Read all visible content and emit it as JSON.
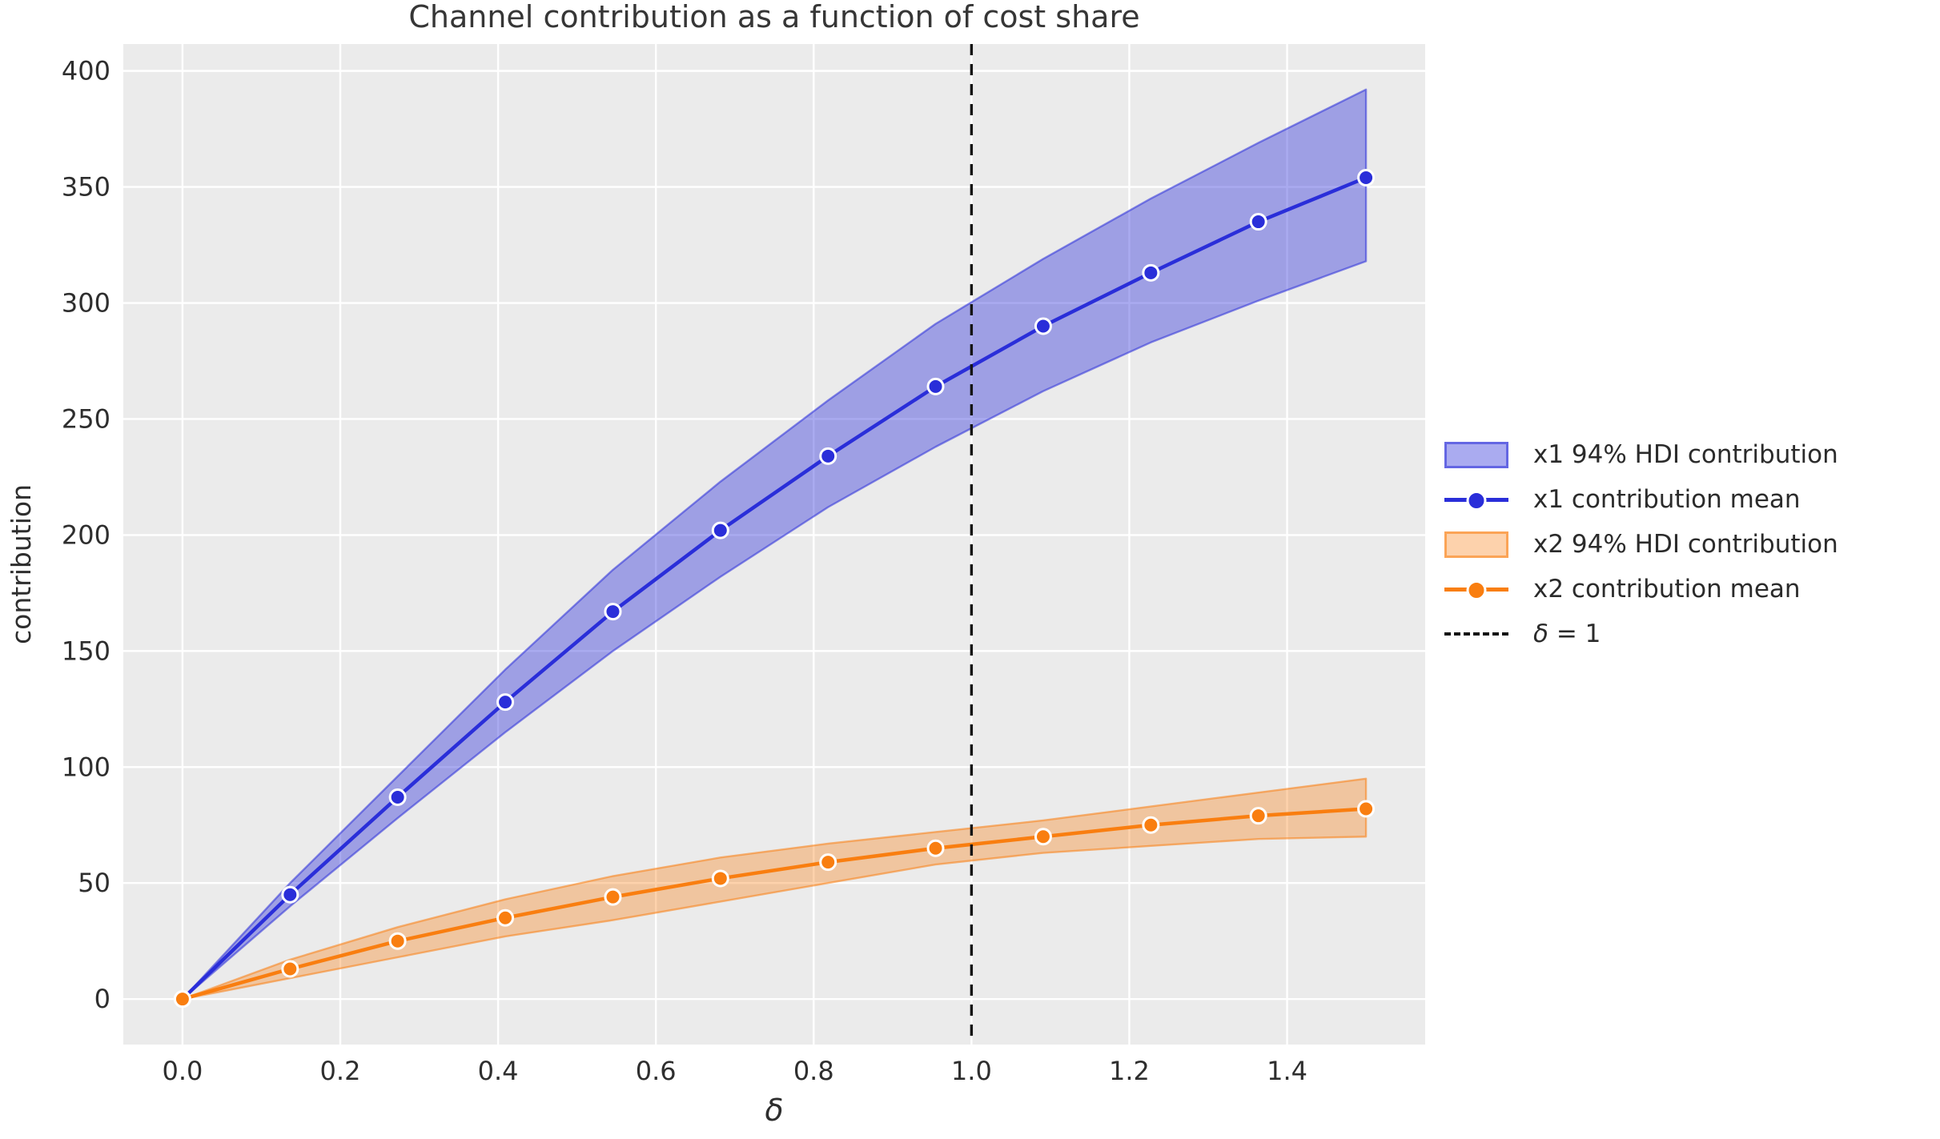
{
  "chart_data": {
    "type": "line",
    "title": "Channel contribution as a function of cost share",
    "xlabel": "δ",
    "ylabel": "contribution",
    "xlim": [
      -0.075,
      1.575
    ],
    "ylim": [
      -19.6,
      411.6
    ],
    "grid": true,
    "axes_background": "#ebebeb",
    "grid_color": "#ffffff",
    "text_color": "#2e2e2e",
    "legend_position": "center right, outside axes",
    "x_ticks": [
      0.0,
      0.2,
      0.4,
      0.6,
      0.8,
      1.0,
      1.2,
      1.4
    ],
    "x_tick_labels": [
      "0.0",
      "0.2",
      "0.4",
      "0.6",
      "0.8",
      "1.0",
      "1.2",
      "1.4"
    ],
    "y_ticks": [
      0,
      50,
      100,
      150,
      200,
      250,
      300,
      350,
      400
    ],
    "y_tick_labels": [
      "0",
      "50",
      "100",
      "150",
      "200",
      "250",
      "300",
      "350",
      "400"
    ],
    "x": [
      0.0,
      0.1364,
      0.2727,
      0.4091,
      0.5455,
      0.6818,
      0.8182,
      0.9545,
      1.0909,
      1.2273,
      1.3636,
      1.5
    ],
    "series": [
      {
        "name": "x1 94% HDI contribution",
        "kind": "band",
        "color": "#2a2ed9",
        "fill_opacity": 0.4,
        "lower": [
          0,
          40,
          78,
          115,
          150,
          182,
          212,
          238,
          262,
          283,
          301,
          318
        ],
        "upper": [
          0,
          50,
          96,
          142,
          185,
          223,
          258,
          291,
          319,
          345,
          369,
          392
        ]
      },
      {
        "name": "x1 contribution mean",
        "kind": "line+markers",
        "color": "#2a2ed9",
        "values": [
          0,
          45,
          87,
          128,
          167,
          202,
          234,
          264,
          290,
          313,
          335,
          354
        ]
      },
      {
        "name": "x2 94% HDI contribution",
        "kind": "band",
        "color": "#f97e10",
        "fill_opacity": 0.35,
        "lower": [
          0,
          9,
          18,
          27,
          34,
          42,
          50,
          58,
          63,
          66,
          69,
          70
        ],
        "upper": [
          0,
          17,
          31,
          43,
          53,
          61,
          67,
          72,
          77,
          83,
          89,
          95
        ]
      },
      {
        "name": "x2 contribution mean",
        "kind": "line+markers",
        "color": "#f97e10",
        "values": [
          0,
          13,
          25,
          35,
          44,
          52,
          59,
          65,
          70,
          75,
          79,
          82
        ]
      },
      {
        "name": "δ = 1",
        "kind": "vline",
        "x_position": 1.0,
        "color": "#141414",
        "style": "dashed"
      }
    ]
  },
  "legend": {
    "items": [
      {
        "label": "x1 94% HDI contribution"
      },
      {
        "label": "x1 contribution mean"
      },
      {
        "label": "x2 94% HDI contribution"
      },
      {
        "label": "x2 contribution mean"
      }
    ],
    "delta_item": {
      "symbol": "δ",
      "rest": " = 1"
    }
  }
}
